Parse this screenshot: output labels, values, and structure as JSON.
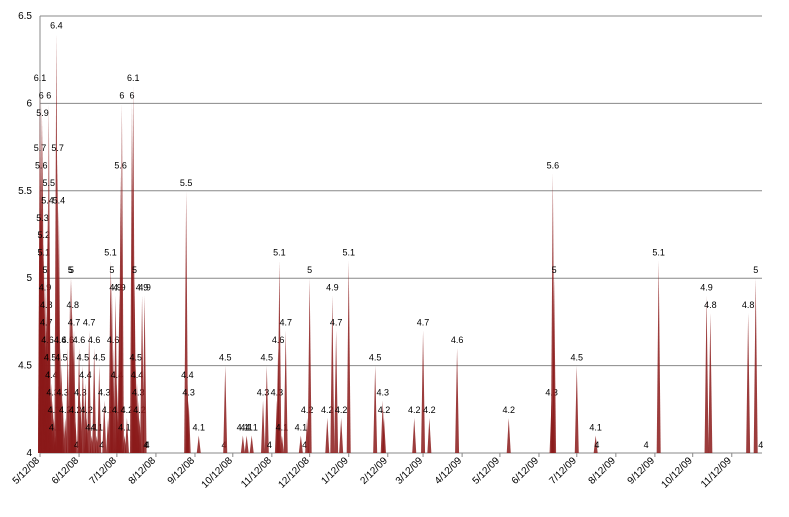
{
  "chart_data": {
    "type": "spike",
    "color": "#8b1a1a",
    "x": [
      "2008-05-12",
      "2008-05-12",
      "2008-05-13",
      "2008-05-13",
      "2008-05-14",
      "2008-05-14",
      "2008-05-15",
      "2008-05-15",
      "2008-05-16",
      "2008-05-16",
      "2008-05-17",
      "2008-05-17",
      "2008-05-18",
      "2008-05-18",
      "2008-05-19",
      "2008-05-19",
      "2008-05-20",
      "2008-05-21",
      "2008-05-22",
      "2008-05-23",
      "2008-05-24",
      "2008-05-25",
      "2008-05-26",
      "2008-05-27",
      "2008-05-28",
      "2008-05-29",
      "2008-05-30",
      "2008-06-01",
      "2008-06-03",
      "2008-06-05",
      "2008-06-06",
      "2008-06-07",
      "2008-06-08",
      "2008-06-09",
      "2008-06-10",
      "2008-06-12",
      "2008-06-13",
      "2008-06-15",
      "2008-06-17",
      "2008-06-18",
      "2008-06-20",
      "2008-06-22",
      "2008-06-24",
      "2008-06-26",
      "2008-06-28",
      "2008-06-30",
      "2008-07-02",
      "2008-07-05",
      "2008-07-07",
      "2008-07-08",
      "2008-07-09",
      "2008-07-11",
      "2008-07-12",
      "2008-07-13",
      "2008-07-14",
      "2008-07-15",
      "2008-07-16",
      "2008-07-18",
      "2008-07-20",
      "2008-07-24",
      "2008-07-25",
      "2008-07-26",
      "2008-07-27",
      "2008-07-28",
      "2008-07-29",
      "2008-07-30",
      "2008-08-01",
      "2008-08-03",
      "2008-08-04",
      "2008-08-05",
      "2008-09-05",
      "2008-09-06",
      "2008-09-07",
      "2008-09-15",
      "2008-10-05",
      "2008-10-06",
      "2008-10-20",
      "2008-10-23",
      "2008-10-27",
      "2008-11-05",
      "2008-11-08",
      "2008-11-10",
      "2008-11-16",
      "2008-11-17",
      "2008-11-18",
      "2008-11-20",
      "2008-11-23",
      "2008-12-05",
      "2008-12-08",
      "2008-12-10",
      "2008-12-12",
      "2008-12-26",
      "2008-12-30",
      "2009-01-02",
      "2009-01-06",
      "2009-01-12",
      "2009-02-02",
      "2009-02-08",
      "2009-02-09",
      "2009-03-05",
      "2009-03-12",
      "2009-03-17",
      "2009-04-08",
      "2009-05-19",
      "2009-06-22",
      "2009-06-23",
      "2009-06-24",
      "2009-07-12",
      "2009-07-27",
      "2009-07-28",
      "2009-09-05",
      "2009-09-15",
      "2009-10-23",
      "2009-10-26",
      "2009-11-25",
      "2009-12-01",
      "2009-12-05"
    ],
    "values": [
      6.1,
      5.7,
      6,
      5.6,
      5.9,
      5.3,
      5.2,
      5.1,
      5,
      4.9,
      4.8,
      4.7,
      5.4,
      4.6,
      6,
      5.5,
      4.5,
      4.4,
      4.3,
      4.2,
      4.1,
      6.4,
      5.7,
      5.4,
      4.6,
      4.5,
      4.3,
      4.2,
      4.6,
      5,
      5,
      4.8,
      4.7,
      4.2,
      4,
      4.6,
      4.3,
      4.5,
      4.4,
      4.2,
      4.7,
      4.1,
      4.6,
      4.1,
      4.5,
      4,
      4.3,
      4.2,
      5.1,
      5,
      4.6,
      4.9,
      4.4,
      4.2,
      4.9,
      5.6,
      6,
      4.1,
      4.2,
      6,
      6.1,
      5,
      4.5,
      4.4,
      4.3,
      4.2,
      4.9,
      4.9,
      4,
      4,
      5.5,
      4.4,
      4.3,
      4.1,
      4,
      4.5,
      4.1,
      4.1,
      4.1,
      4.3,
      4.5,
      4,
      4.3,
      4.6,
      5.1,
      4.1,
      4.7,
      4.1,
      4,
      4.2,
      5,
      4.2,
      4.9,
      4.7,
      4.2,
      5.1,
      4.5,
      4.3,
      4.2,
      4.2,
      4.7,
      4.2,
      4.6,
      4.2,
      4.3,
      5.6,
      5,
      4.5,
      4.1,
      4,
      4,
      5.1,
      4.9,
      4.8,
      4.8,
      5,
      4
    ],
    "xlim": [
      "2008-05-12",
      "2009-12-06"
    ],
    "xticks": [
      {
        "value": "2008-05-12",
        "label": "5/12/08"
      },
      {
        "value": "2008-06-12",
        "label": "6/12/08"
      },
      {
        "value": "2008-07-12",
        "label": "7/12/08"
      },
      {
        "value": "2008-08-12",
        "label": "8/12/08"
      },
      {
        "value": "2008-09-12",
        "label": "9/12/08"
      },
      {
        "value": "2008-10-12",
        "label": "10/12/08"
      },
      {
        "value": "2008-11-12",
        "label": "11/12/08"
      },
      {
        "value": "2008-12-12",
        "label": "12/12/08"
      },
      {
        "value": "2009-01-12",
        "label": "1/12/09"
      },
      {
        "value": "2009-02-12",
        "label": "2/12/09"
      },
      {
        "value": "2009-03-12",
        "label": "3/12/09"
      },
      {
        "value": "2009-04-12",
        "label": "4/12/09"
      },
      {
        "value": "2009-05-12",
        "label": "5/12/09"
      },
      {
        "value": "2009-06-12",
        "label": "6/12/09"
      },
      {
        "value": "2009-07-12",
        "label": "7/12/09"
      },
      {
        "value": "2009-08-12",
        "label": "8/12/09"
      },
      {
        "value": "2009-09-12",
        "label": "9/12/09"
      },
      {
        "value": "2009-10-12",
        "label": "10/12/09"
      },
      {
        "value": "2009-11-12",
        "label": "11/12/09"
      }
    ],
    "ylim": [
      4,
      6.5
    ],
    "yticks": [
      4,
      4.5,
      5,
      5.5,
      6,
      6.5
    ],
    "grid": true
  }
}
